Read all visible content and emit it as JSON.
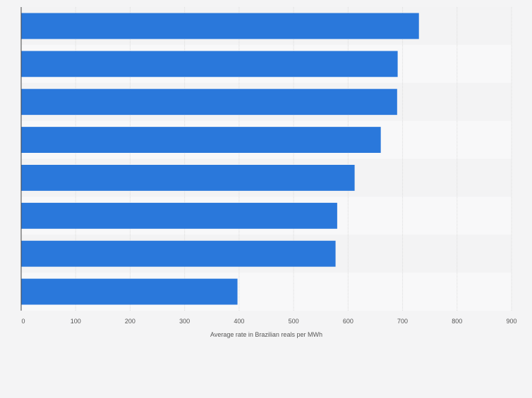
{
  "chart_data": {
    "type": "bar",
    "orientation": "horizontal",
    "title": "",
    "categories": [
      "",
      "",
      "",
      "",
      "",
      "",
      "",
      ""
    ],
    "values": [
      730,
      691,
      690,
      660,
      612,
      580,
      577,
      397
    ],
    "xlabel": "Average rate in Brazilian reals per MWh",
    "ylabel": "",
    "xlim": [
      0,
      900
    ],
    "xticks": [
      "0",
      "100",
      "200",
      "300",
      "400",
      "500",
      "600",
      "700",
      "800",
      "900"
    ],
    "grid": true,
    "bar_color": "#2a78db",
    "band_colors": [
      "#f3f3f4",
      "#f8f8f9"
    ]
  }
}
